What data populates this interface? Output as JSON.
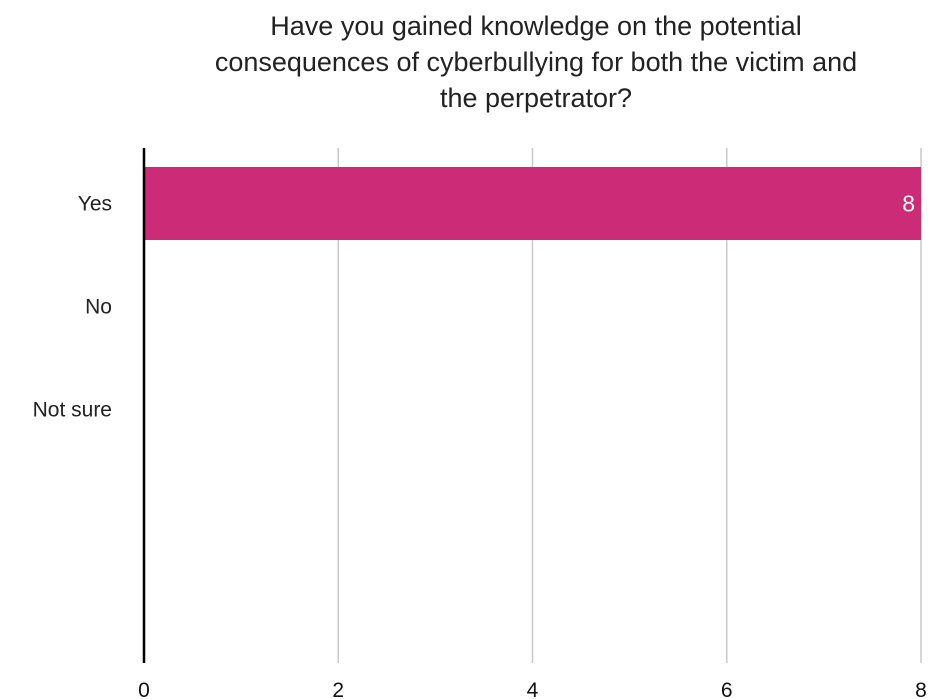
{
  "chart_data": {
    "type": "bar",
    "orientation": "horizontal",
    "title_lines": [
      "Have you gained knowledge on the potential",
      "consequences of cyberbullying for both the victim and",
      "the perpetrator?"
    ],
    "categories": [
      "Yes",
      "No",
      "Not sure"
    ],
    "values": [
      8,
      0,
      0
    ],
    "data_labels": [
      "8",
      "",
      ""
    ],
    "xlim": [
      0,
      8
    ],
    "x_ticks": [
      "0",
      "2",
      "4",
      "6",
      "8"
    ],
    "grid": "vertical",
    "colors": {
      "bar": "#cc2b78",
      "grid": "#c8c8c8",
      "axis": "#000000"
    }
  }
}
